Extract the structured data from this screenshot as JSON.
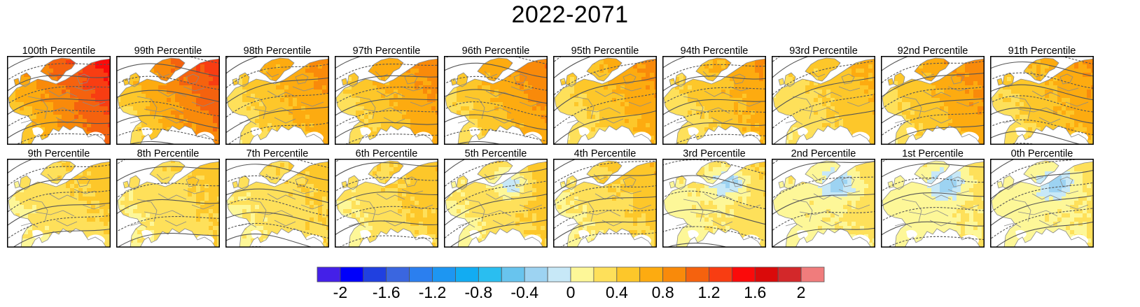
{
  "title": "2022-2071",
  "panels": [
    {
      "label": "100th Percentile",
      "base": 1.0,
      "grad": 0.9,
      "neg": false,
      "seed": 3
    },
    {
      "label": "99th Percentile",
      "base": 0.75,
      "grad": 0.9,
      "neg": false,
      "seed": 7
    },
    {
      "label": "98th Percentile",
      "base": 0.6,
      "grad": 0.55,
      "neg": false,
      "seed": 11
    },
    {
      "label": "97th Percentile",
      "base": 0.6,
      "grad": 0.6,
      "neg": false,
      "seed": 13
    },
    {
      "label": "96th Percentile",
      "base": 0.65,
      "grad": 0.6,
      "neg": false,
      "seed": 17
    },
    {
      "label": "95th Percentile",
      "base": 0.55,
      "grad": 0.55,
      "neg": false,
      "seed": 19
    },
    {
      "label": "94th Percentile",
      "base": 0.55,
      "grad": 0.5,
      "neg": false,
      "seed": 23
    },
    {
      "label": "93rd Percentile",
      "base": 0.45,
      "grad": 0.4,
      "neg": false,
      "seed": 29
    },
    {
      "label": "92nd Percentile",
      "base": 0.6,
      "grad": 0.6,
      "neg": false,
      "seed": 31
    },
    {
      "label": "91th Percentile",
      "base": 0.6,
      "grad": 0.5,
      "neg": false,
      "seed": 37
    },
    {
      "label": "9th Percentile",
      "base": 0.35,
      "grad": 0.3,
      "neg": false,
      "seed": 41
    },
    {
      "label": "8th Percentile",
      "base": 0.35,
      "grad": 0.3,
      "neg": false,
      "seed": 43
    },
    {
      "label": "7th Percentile",
      "base": 0.35,
      "grad": 0.3,
      "neg": false,
      "seed": 47
    },
    {
      "label": "6th Percentile",
      "base": 0.35,
      "grad": 0.35,
      "neg": false,
      "seed": 53
    },
    {
      "label": "5th Percentile",
      "base": 0.3,
      "grad": 0.4,
      "neg": true,
      "seed": 59
    },
    {
      "label": "4th Percentile",
      "base": 0.3,
      "grad": 0.4,
      "neg": false,
      "seed": 61
    },
    {
      "label": "3rd Percentile",
      "base": 0.2,
      "grad": 0.3,
      "neg": true,
      "seed": 67
    },
    {
      "label": "2nd Percentile",
      "base": 0.2,
      "grad": 0.2,
      "neg": true,
      "seed": 71
    },
    {
      "label": "1st Percentile",
      "base": 0.15,
      "grad": 0.2,
      "neg": true,
      "seed": 73
    },
    {
      "label": "0th Percentile",
      "base": 0.15,
      "grad": 0.2,
      "neg": true,
      "seed": 79
    }
  ],
  "chart_data": {
    "type": "heatmap",
    "title": "2022-2071",
    "colorbar": {
      "boundaries": [
        -2.2,
        -2.0,
        -1.8,
        -1.6,
        -1.4,
        -1.2,
        -1.0,
        -0.8,
        -0.6,
        -0.4,
        -0.2,
        0,
        0.2,
        0.4,
        0.6,
        0.8,
        1.0,
        1.2,
        1.4,
        1.6,
        1.8,
        2.0,
        2.2
      ],
      "colors": [
        "#4420e8",
        "#0000fa",
        "#2040e0",
        "#3a66e0",
        "#2b7fef",
        "#1d96f2",
        "#12acf2",
        "#2abef0",
        "#68c4ee",
        "#9dd3f2",
        "#c7e8f7",
        "#fdf798",
        "#fee05a",
        "#fdc72a",
        "#fdab10",
        "#f98a0a",
        "#f5620e",
        "#f83d12",
        "#fb0a0a",
        "#da0a0a",
        "#d3282a",
        "#f07c7c"
      ],
      "tick_values": [
        -2,
        -1.6,
        -1.2,
        -0.8,
        -0.4,
        0,
        0.4,
        0.8,
        1.2,
        1.6,
        2
      ],
      "tick_labels": [
        "-2",
        "-1.6",
        "-1.2",
        "-0.8",
        "-0.4",
        "0",
        "0.4",
        "0.8",
        "1.2",
        "1.6",
        "2"
      ]
    }
  }
}
